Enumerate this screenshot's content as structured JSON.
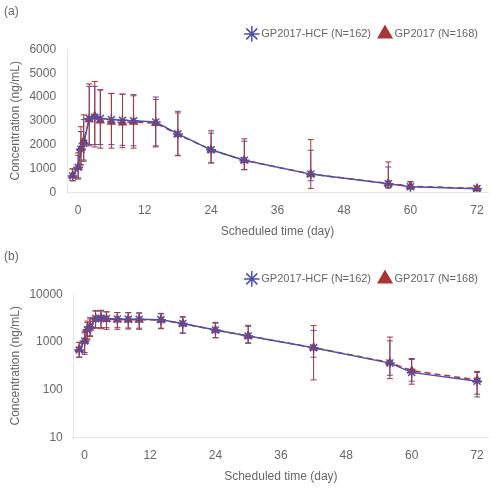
{
  "chart_data": [
    {
      "type": "line",
      "annotations": [
        "(a)"
      ],
      "xlabel": "Scheduled time (day)",
      "ylabel": "Concentration (ng/mL)",
      "x": [
        -1,
        0,
        0.5,
        1,
        2,
        3,
        4,
        6,
        8,
        10,
        14,
        18,
        24,
        30,
        42,
        56,
        60,
        72
      ],
      "series": [
        {
          "name": "GP2017-HCF (N=162)",
          "color": "#5050aa",
          "marker": "star",
          "line_style": "solid",
          "values": [
            680,
            1050,
            1800,
            2050,
            3100,
            3150,
            3100,
            3050,
            3020,
            3000,
            2950,
            2450,
            1780,
            1340,
            760,
            360,
            230,
            150
          ],
          "yerr_lo": [
            200,
            450,
            650,
            700,
            1100,
            1150,
            1100,
            1050,
            1050,
            1050,
            1000,
            900,
            550,
            380,
            280,
            160,
            80,
            80
          ],
          "yerr_hi": [
            300,
            500,
            750,
            1000,
            1350,
            1300,
            1200,
            1100,
            1100,
            1100,
            1050,
            950,
            700,
            800,
            1000,
            700,
            200,
            80
          ]
        },
        {
          "name": "GP2017 (N=168)",
          "color": "#aa3535",
          "marker": "triangle",
          "line_style": "dashed",
          "values": [
            700,
            1050,
            1850,
            2150,
            3050,
            3200,
            3000,
            2950,
            2920,
            2950,
            2900,
            2430,
            1780,
            1340,
            760,
            370,
            250,
            160
          ],
          "yerr_lo": [
            220,
            500,
            700,
            850,
            1100,
            1300,
            1150,
            1100,
            1050,
            1100,
            1000,
            900,
            550,
            400,
            600,
            200,
            120,
            80
          ],
          "yerr_hi": [
            280,
            600,
            900,
            1100,
            1500,
            1450,
            1300,
            1200,
            1200,
            1100,
            1000,
            900,
            800,
            900,
            1450,
            900,
            200,
            80
          ]
        }
      ],
      "xlim": [
        -2,
        74
      ],
      "xticks": [
        0,
        12,
        24,
        36,
        48,
        60,
        72
      ],
      "ylim": [
        0,
        6000
      ],
      "yticks": [
        0,
        1000,
        2000,
        3000,
        4000,
        5000,
        6000
      ],
      "grid": false,
      "legend": "upper right"
    },
    {
      "type": "line",
      "annotations": [
        "(b)"
      ],
      "xlabel": "Scheduled time (day)",
      "ylabel": "Concentration (ng/mL)",
      "log": "y",
      "x": [
        -1,
        0,
        0.5,
        1,
        2,
        3,
        4,
        6,
        8,
        10,
        14,
        18,
        24,
        30,
        42,
        56,
        60,
        72
      ],
      "series": [
        {
          "name": "GP2017-HCF (N=162)",
          "color": "#5050aa",
          "marker": "star",
          "line_style": "solid",
          "values": [
            680,
            1050,
            1800,
            2050,
            3100,
            3150,
            3100,
            3050,
            3020,
            3000,
            2950,
            2450,
            1780,
            1340,
            760,
            360,
            230,
            150
          ],
          "yerr_lo": [
            200,
            450,
            650,
            700,
            1100,
            1150,
            1100,
            1050,
            1050,
            1050,
            1000,
            900,
            550,
            380,
            280,
            160,
            80,
            80
          ],
          "yerr_hi": [
            300,
            500,
            750,
            1000,
            1350,
            1300,
            1200,
            1100,
            1100,
            1100,
            1050,
            950,
            700,
            800,
            1000,
            700,
            200,
            80
          ]
        },
        {
          "name": "GP2017 (N=168)",
          "color": "#aa3535",
          "marker": "triangle",
          "line_style": "dashed",
          "values": [
            700,
            1050,
            1850,
            2150,
            3050,
            3200,
            3000,
            2950,
            2920,
            2950,
            2900,
            2430,
            1780,
            1340,
            760,
            370,
            250,
            160
          ],
          "yerr_lo": [
            220,
            500,
            700,
            850,
            1100,
            1300,
            1150,
            1100,
            1050,
            1100,
            1000,
            900,
            550,
            400,
            600,
            200,
            120,
            80
          ],
          "yerr_hi": [
            280,
            600,
            900,
            1100,
            1500,
            1450,
            1300,
            1200,
            1200,
            1100,
            1000,
            900,
            800,
            900,
            1450,
            900,
            200,
            80
          ]
        }
      ],
      "xlim": [
        -2,
        74
      ],
      "xticks": [
        0,
        12,
        24,
        36,
        48,
        60,
        72
      ],
      "ylim": [
        10,
        10000
      ],
      "yticks": [
        10,
        100,
        1000,
        10000
      ],
      "grid": false,
      "legend": "upper right"
    }
  ]
}
